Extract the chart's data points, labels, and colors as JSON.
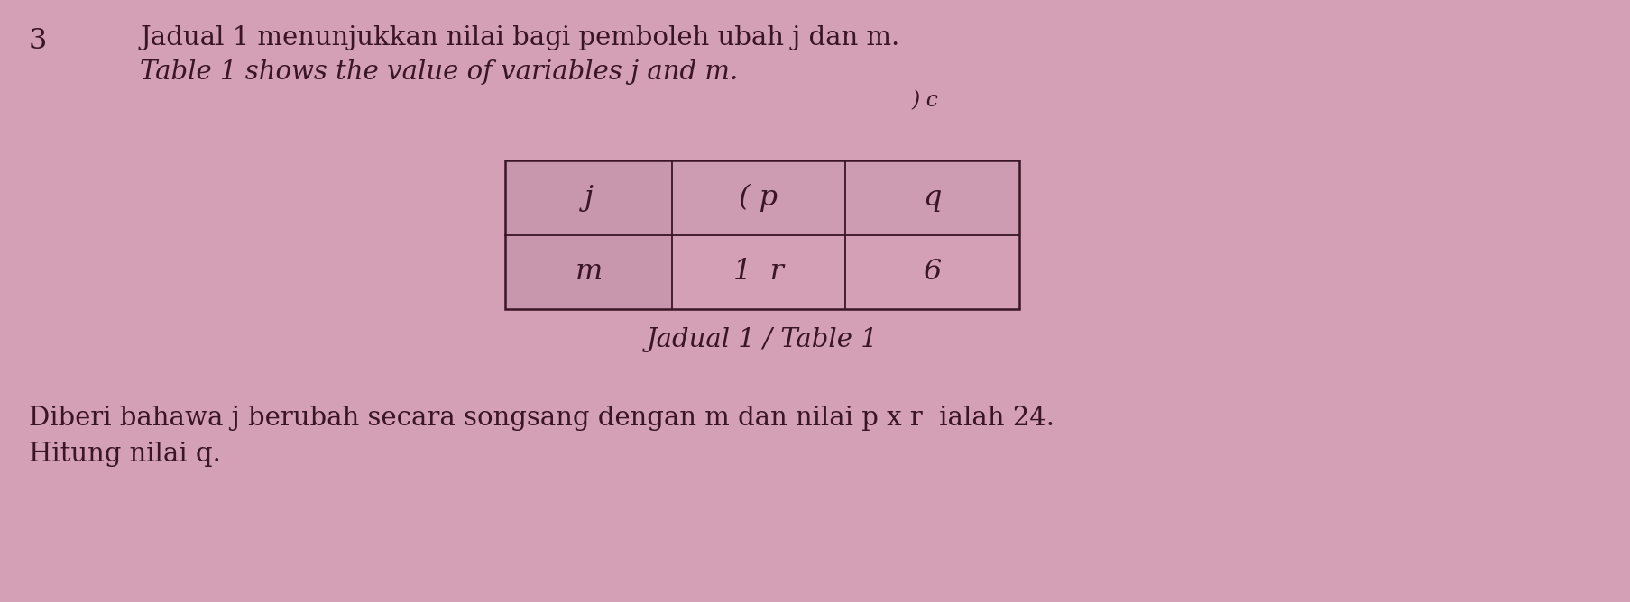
{
  "bg_color": "#d4a0b5",
  "question_number": "3",
  "line1": "Jadual 1 menunjukkan nilai bagi pemboleh ubah j dan m.",
  "line2": "Table 1 shows the value of variables j and m.",
  "table_caption": "Jadual 1 / Table 1",
  "table_row1": [
    "j",
    "( p",
    "q"
  ],
  "table_row2": [
    "m",
    "1  r",
    "6"
  ],
  "note_above_table": ") c",
  "bottom_line1": "Diberi bahawa j berubah secara songsang dengan m dan nilai p x r  ialah 24.",
  "bottom_line2": "Hitung nilai q.",
  "text_color": "#3a1525",
  "table_border_color": "#3a1525",
  "table_fill_col1": "#c090a8",
  "table_fill_row1": "#c898b0"
}
